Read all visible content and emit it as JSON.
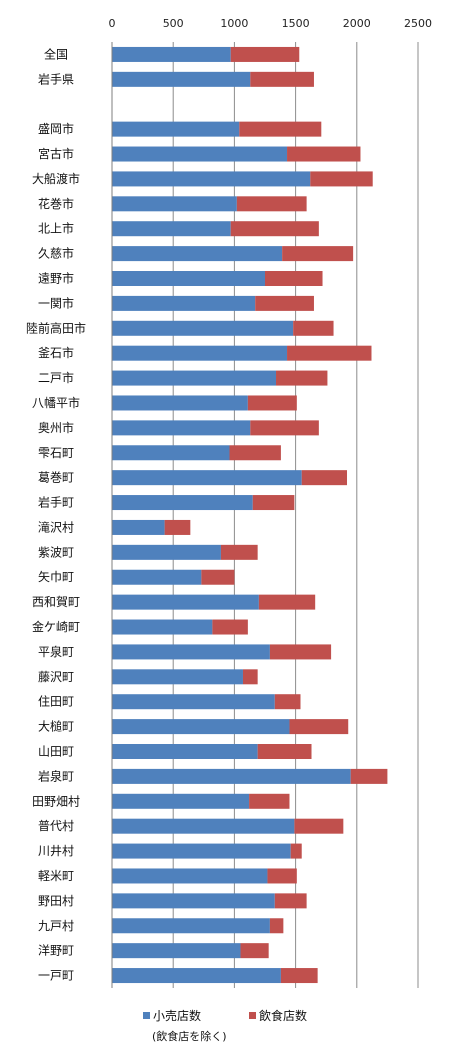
{
  "chart_data": {
    "type": "bar",
    "orientation": "horizontal",
    "stacked": true,
    "categories": [
      "全国",
      "岩手県",
      "",
      "盛岡市",
      "宮古市",
      "大船渡市",
      "花巻市",
      "北上市",
      "久慈市",
      "遠野市",
      "一関市",
      "陸前高田市",
      "釜石市",
      "二戸市",
      "八幡平市",
      "奥州市",
      "雫石町",
      "葛巻町",
      "岩手町",
      "滝沢村",
      "紫波町",
      "矢巾町",
      "西和賀町",
      "金ケ崎町",
      "平泉町",
      "藤沢町",
      "住田町",
      "大槌町",
      "山田町",
      "岩泉町",
      "田野畑村",
      "普代村",
      "川井村",
      "軽米町",
      "野田村",
      "九戸村",
      "洋野町",
      "一戸町"
    ],
    "series": [
      {
        "name": "小売店数",
        "color": "#4f81bd",
        "values": [
          970,
          1130,
          null,
          1040,
          1430,
          1620,
          1020,
          970,
          1390,
          1250,
          1170,
          1480,
          1430,
          1340,
          1110,
          1130,
          960,
          1550,
          1150,
          430,
          890,
          730,
          1200,
          820,
          1290,
          1070,
          1330,
          1450,
          1190,
          1950,
          1120,
          1490,
          1460,
          1270,
          1330,
          1290,
          1050,
          1380
        ]
      },
      {
        "name": "飲食店数",
        "color": "#c0504d",
        "values": [
          560,
          520,
          null,
          670,
          600,
          510,
          570,
          720,
          580,
          470,
          480,
          330,
          690,
          420,
          400,
          560,
          420,
          370,
          340,
          210,
          300,
          270,
          460,
          290,
          500,
          120,
          210,
          480,
          440,
          300,
          330,
          400,
          90,
          240,
          260,
          110,
          230,
          300
        ]
      }
    ],
    "xlim": [
      0,
      2500
    ],
    "xticks": [
      "0",
      "500",
      "1000",
      "1500",
      "2000",
      "2500"
    ],
    "grid": true,
    "legend_position": "bottom",
    "legend_note": "(飲食店を除く)"
  }
}
